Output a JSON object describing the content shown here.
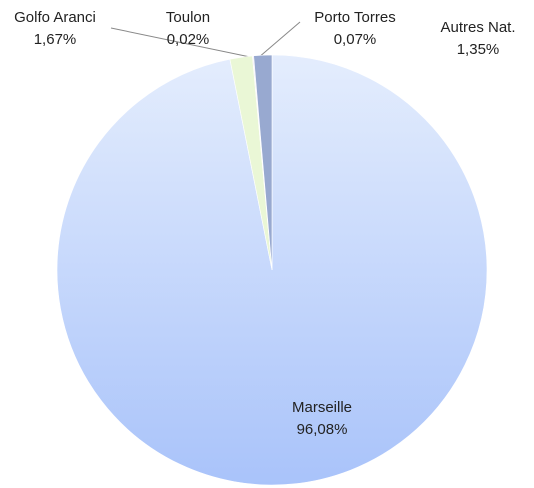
{
  "chart_data": {
    "type": "pie",
    "categories": [
      "Marseille",
      "Golfo Aranci",
      "Toulon",
      "Porto Torres",
      "Autres Nat."
    ],
    "values": [
      96.08,
      1.67,
      0.02,
      0.07,
      1.35
    ],
    "value_labels": [
      "96,08%",
      "1,67%",
      "0,02%",
      "0,07%",
      "1,35%"
    ],
    "colors": [
      "#b9cffb",
      "#eaf7d6",
      "#f2b98c",
      "#e4dcf4",
      "#98a9d0"
    ]
  }
}
